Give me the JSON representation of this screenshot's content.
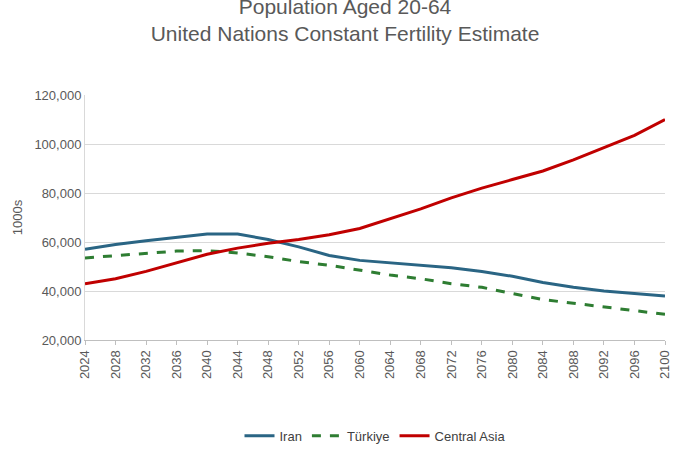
{
  "chart_data": {
    "type": "line",
    "title": "Population Aged 20-64",
    "subtitle": "United Nations Constant Fertility Estimate",
    "y_label": "1000s",
    "x": [
      2024,
      2028,
      2032,
      2036,
      2040,
      2044,
      2048,
      2052,
      2056,
      2060,
      2064,
      2068,
      2072,
      2076,
      2080,
      2084,
      2088,
      2092,
      2096,
      2100
    ],
    "series": [
      {
        "name": "Iran",
        "color": "#2a6584",
        "line_style": "solid",
        "values": [
          57000,
          59000,
          60500,
          62000,
          63300,
          63300,
          61000,
          58000,
          54500,
          52500,
          51500,
          50500,
          49500,
          48000,
          46000,
          43500,
          41500,
          40000,
          39000,
          38000
        ]
      },
      {
        "name": "Türkiye",
        "color": "#2e7d32",
        "line_style": "dash",
        "values": [
          53500,
          54500,
          55500,
          56300,
          56500,
          55500,
          54000,
          52000,
          50500,
          48500,
          46500,
          45000,
          43000,
          41500,
          39000,
          36500,
          35000,
          33500,
          32000,
          30500
        ]
      },
      {
        "name": "Central Asia",
        "color": "#c00000",
        "line_style": "solid",
        "values": [
          43000,
          45000,
          48000,
          51500,
          55000,
          57500,
          59500,
          61000,
          63000,
          65500,
          69500,
          73500,
          78000,
          82000,
          85500,
          89000,
          93500,
          98500,
          103500,
          110000
        ]
      }
    ],
    "xlim": [
      2024,
      2100
    ],
    "xticks": [
      2024,
      2028,
      2032,
      2036,
      2040,
      2044,
      2048,
      2052,
      2056,
      2060,
      2064,
      2068,
      2072,
      2076,
      2080,
      2084,
      2088,
      2092,
      2096,
      2100
    ],
    "ylim": [
      20000,
      120000
    ],
    "yticks": [
      {
        "value": 20000,
        "label": "20,000"
      },
      {
        "value": 40000,
        "label": "40,000"
      },
      {
        "value": 60000,
        "label": "60,000"
      },
      {
        "value": 80000,
        "label": "80,000"
      },
      {
        "value": 100000,
        "label": "100,000"
      },
      {
        "value": 120000,
        "label": "120,000"
      }
    ],
    "grid": true,
    "legend": "bottom"
  }
}
